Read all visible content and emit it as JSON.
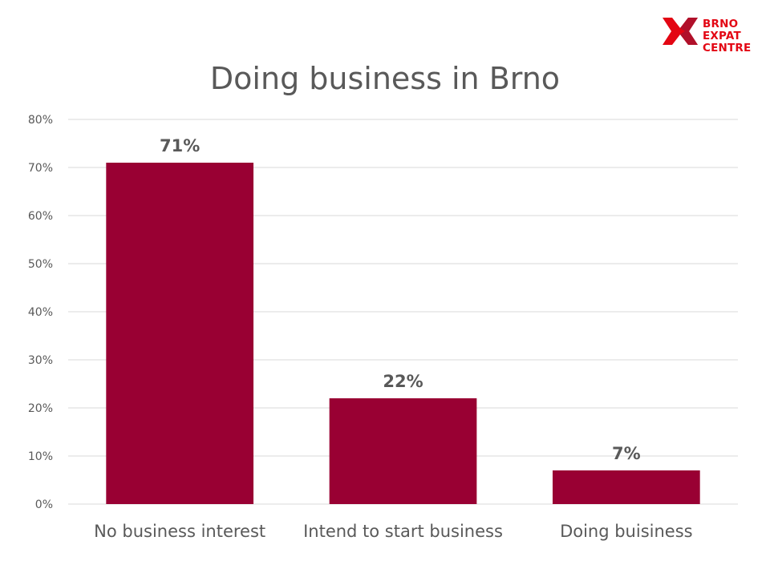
{
  "logo": {
    "lines": [
      "BRNO",
      "EXPAT",
      "CENTRE"
    ],
    "colors": {
      "primary": "#e30613",
      "dark": "#b0102a"
    }
  },
  "chart_data": {
    "type": "bar",
    "title": "Doing business in Brno",
    "categories": [
      "No business interest",
      "Intend to start business",
      "Doing buisiness"
    ],
    "values": [
      71,
      22,
      7
    ],
    "data_labels": [
      "71%",
      "22%",
      "7%"
    ],
    "ylim": [
      0,
      80
    ],
    "yticks": [
      0,
      10,
      20,
      30,
      40,
      50,
      60,
      70,
      80
    ],
    "ytick_labels": [
      "0%",
      "10%",
      "20%",
      "30%",
      "40%",
      "50%",
      "60%",
      "70%",
      "80%"
    ],
    "grid": true,
    "legend": "none",
    "bar_color": "#990033",
    "xlabel": "",
    "ylabel": ""
  }
}
